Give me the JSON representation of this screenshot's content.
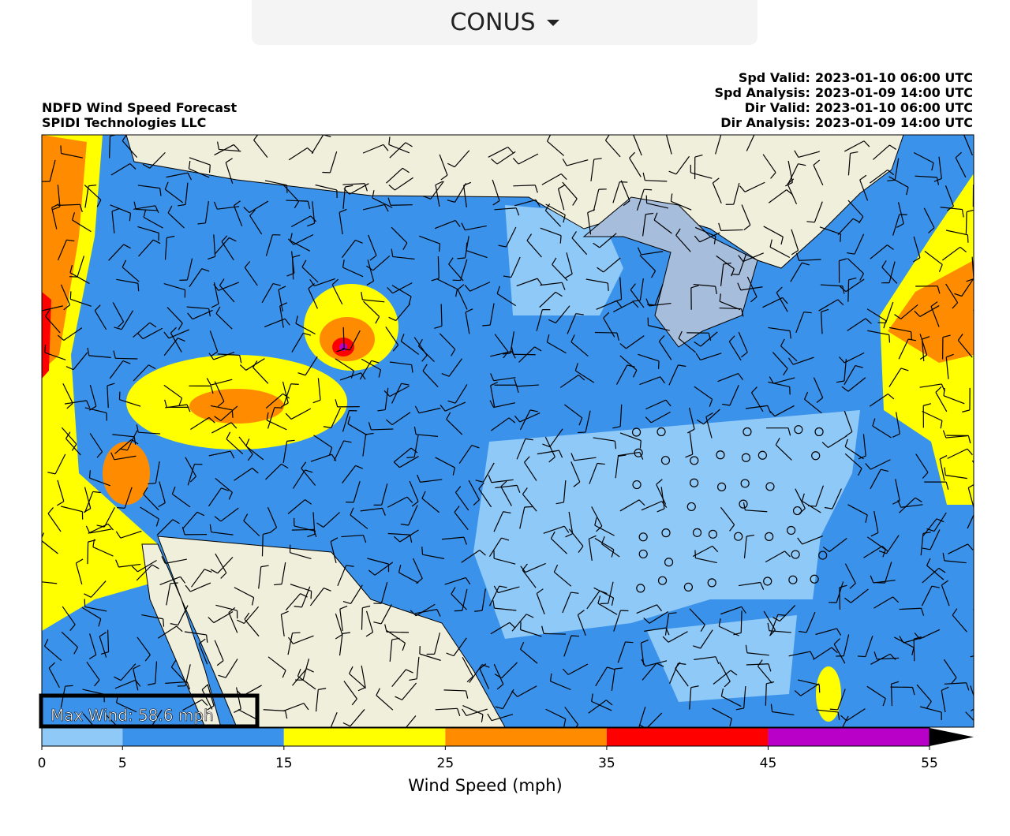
{
  "header": {
    "region": "CONUS"
  },
  "map": {
    "title": "NDFD Wind Speed Forecast",
    "subtitle": "SPIDI Technologies LLC",
    "times": [
      {
        "label": "Spd Valid:",
        "value": "2023-01-10 06:00 UTC"
      },
      {
        "label": "Spd Analysis:",
        "value": "2023-01-09 14:00 UTC"
      },
      {
        "label": "Dir Valid:",
        "value": "2023-01-10 06:00 UTC"
      },
      {
        "label": "Dir Analysis:",
        "value": "2023-01-09 14:00 UTC"
      }
    ],
    "max_wind": "Max Wind: 58.6 mph"
  },
  "colorbar": {
    "label": "Wind Speed (mph)",
    "bounds": [
      0,
      5,
      15,
      25,
      35,
      45,
      55
    ],
    "colors": [
      "#8fc9f8",
      "#3b92eb",
      "#ffff00",
      "#ff8c00",
      "#ff0000",
      "#b900c8"
    ],
    "extend_color": "#000000"
  }
}
